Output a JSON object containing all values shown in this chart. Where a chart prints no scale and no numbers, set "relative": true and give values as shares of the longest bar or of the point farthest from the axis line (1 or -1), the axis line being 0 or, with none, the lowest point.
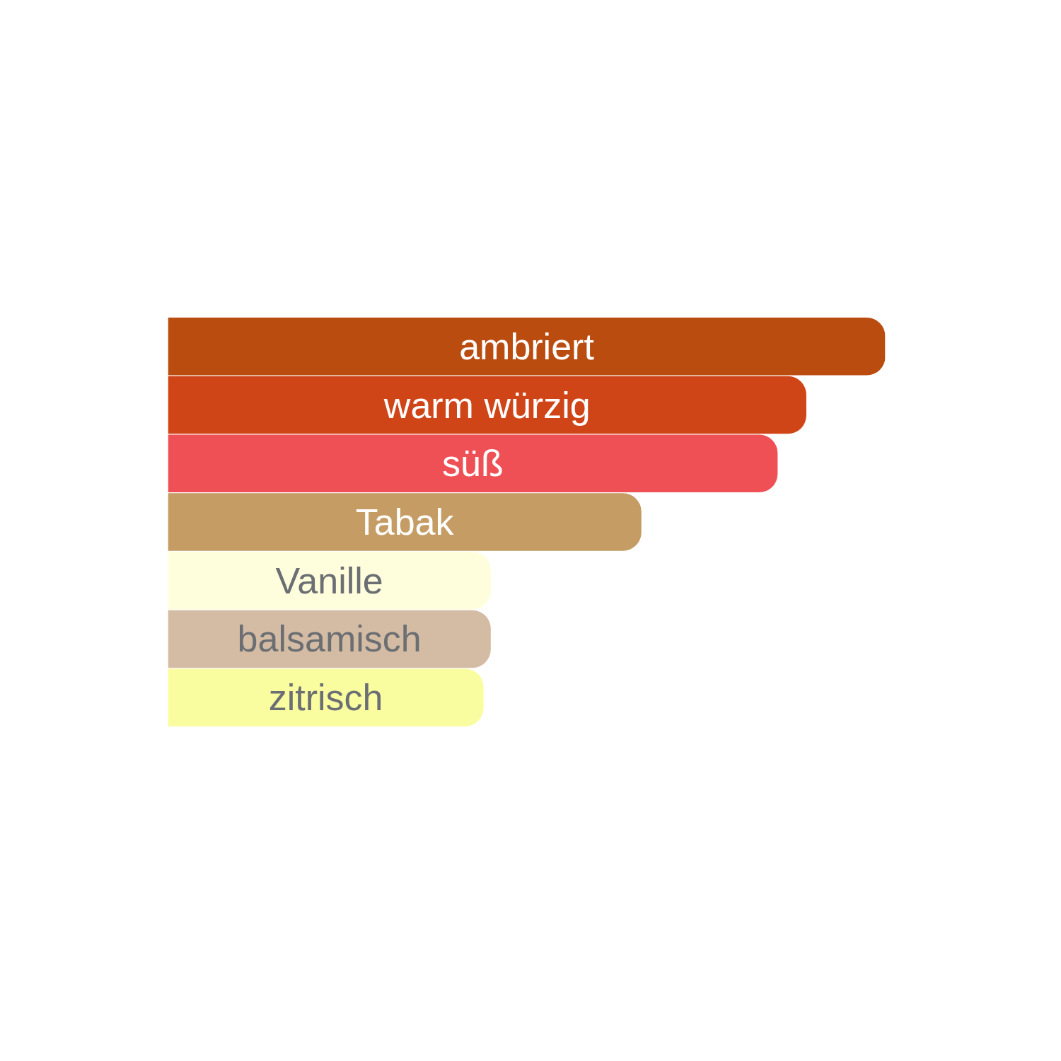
{
  "chart_data": {
    "type": "bar",
    "orientation": "horizontal",
    "relative": true,
    "categories": [
      "ambriert",
      "warm würzig",
      "süß",
      "Tabak",
      "Vanille",
      "balsamisch",
      "zitrisch"
    ],
    "values": [
      1,
      0.89,
      0.85,
      0.66,
      0.45,
      0.45,
      0.44
    ],
    "colors": [
      "#bb4c10",
      "#d04518",
      "#ef5055",
      "#c49c64",
      "#fefedc",
      "#d4bca4",
      "#fafca0"
    ]
  }
}
